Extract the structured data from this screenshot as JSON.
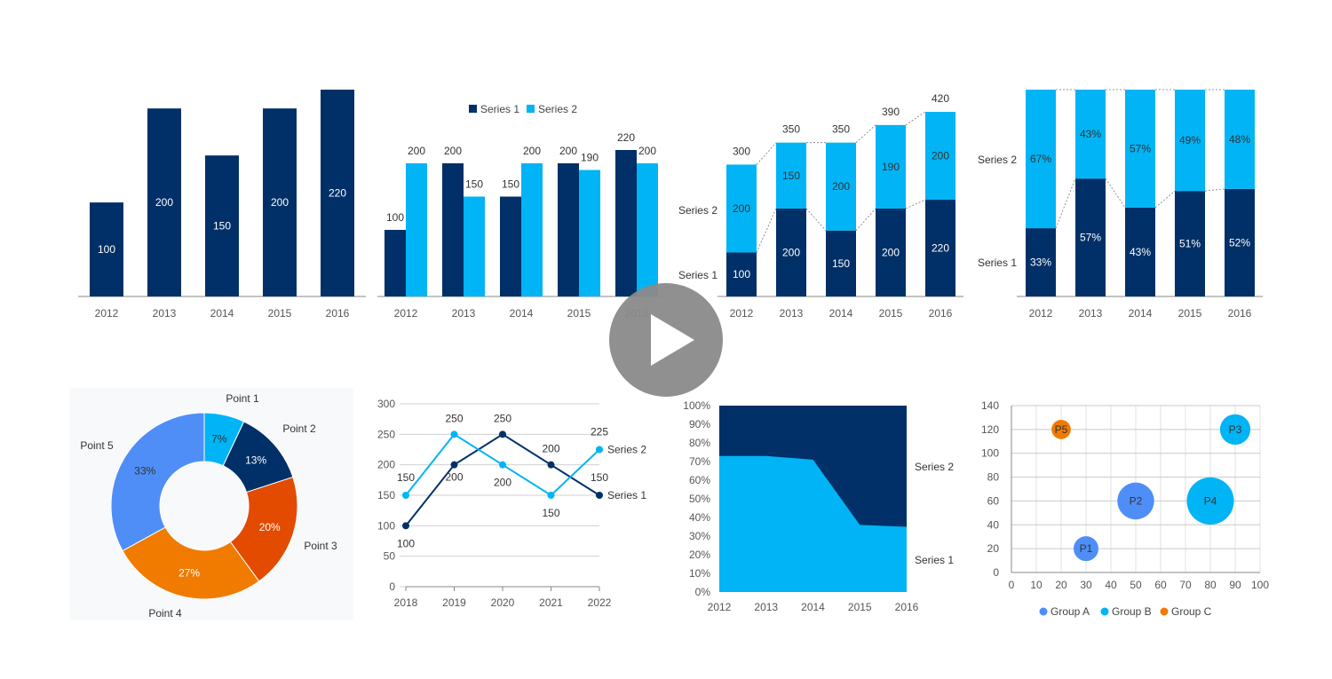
{
  "colors": {
    "dark": "#003067",
    "light": "#00b4f5",
    "blue": "#4f8ef7",
    "orange": "#f07b00",
    "darkorange": "#e24b00",
    "axis": "#888888",
    "grid": "#d0d0d0",
    "play": "#8a8a8a"
  },
  "play_icon": "play-icon",
  "chart_data": [
    {
      "type": "bar",
      "categories": [
        "2012",
        "2013",
        "2014",
        "2015",
        "2016"
      ],
      "values": [
        100,
        200,
        150,
        200,
        220
      ],
      "ylim": [
        0,
        220
      ]
    },
    {
      "type": "bar",
      "categories": [
        "2012",
        "2013",
        "2014",
        "2015",
        "2016"
      ],
      "series": [
        {
          "name": "Series 1",
          "values": [
            100,
            200,
            150,
            200,
            220
          ]
        },
        {
          "name": "Series 2",
          "values": [
            200,
            150,
            200,
            190,
            200
          ]
        }
      ],
      "legend": "top",
      "ylim": [
        0,
        220
      ]
    },
    {
      "type": "bar",
      "stacked": true,
      "categories": [
        "2012",
        "2013",
        "2014",
        "2015",
        "2016"
      ],
      "series": [
        {
          "name": "Series 1",
          "values": [
            100,
            200,
            150,
            200,
            220
          ]
        },
        {
          "name": "Series 2",
          "values": [
            200,
            150,
            200,
            190,
            200
          ]
        }
      ],
      "totals": [
        300,
        350,
        350,
        390,
        420
      ],
      "ylim": [
        0,
        420
      ]
    },
    {
      "type": "bar",
      "stacked": true,
      "percent": true,
      "categories": [
        "2012",
        "2013",
        "2014",
        "2015",
        "2016"
      ],
      "series": [
        {
          "name": "Series 1",
          "values": [
            33,
            57,
            43,
            51,
            52
          ],
          "labels": [
            "33%",
            "57%",
            "43%",
            "51%",
            "52%"
          ]
        },
        {
          "name": "Series 2",
          "values": [
            67,
            43,
            57,
            49,
            48
          ],
          "labels": [
            "67%",
            "43%",
            "57%",
            "49%",
            "48%"
          ]
        }
      ],
      "ylim": [
        0,
        100
      ]
    },
    {
      "type": "pie",
      "donut": true,
      "slices": [
        {
          "name": "Point 1",
          "value": 7,
          "label": "7%"
        },
        {
          "name": "Point 2",
          "value": 13,
          "label": "13%"
        },
        {
          "name": "Point 3",
          "value": 20,
          "label": "20%"
        },
        {
          "name": "Point 4",
          "value": 27,
          "label": "27%"
        },
        {
          "name": "Point 5",
          "value": 33,
          "label": "33%"
        }
      ]
    },
    {
      "type": "line",
      "x": [
        "2018",
        "2019",
        "2020",
        "2021",
        "2022"
      ],
      "series": [
        {
          "name": "Series 1",
          "values": [
            100,
            200,
            250,
            200,
            150
          ]
        },
        {
          "name": "Series 2",
          "values": [
            150,
            250,
            200,
            150,
            225
          ]
        }
      ],
      "yticks": [
        "0",
        "50",
        "100",
        "150",
        "200",
        "250",
        "300"
      ],
      "ylim": [
        0,
        300
      ],
      "grid": true
    },
    {
      "type": "area",
      "stacked": true,
      "percent": true,
      "x": [
        "2012",
        "2013",
        "2014",
        "2015",
        "2016"
      ],
      "series": [
        {
          "name": "Series 1",
          "values": [
            73,
            73,
            71,
            36,
            35
          ]
        },
        {
          "name": "Series 2",
          "values": [
            27,
            27,
            29,
            64,
            65
          ]
        }
      ],
      "yticks": [
        "0%",
        "10%",
        "20%",
        "30%",
        "40%",
        "50%",
        "60%",
        "70%",
        "80%",
        "90%",
        "100%"
      ],
      "ylim": [
        0,
        100
      ]
    },
    {
      "type": "scatter",
      "bubble": true,
      "groups": [
        "Group A",
        "Group B",
        "Group C"
      ],
      "points": [
        {
          "label": "P1",
          "x": 30,
          "y": 20,
          "size": 1,
          "group": 0
        },
        {
          "label": "P2",
          "x": 50,
          "y": 60,
          "size": 2.2,
          "group": 0
        },
        {
          "label": "P3",
          "x": 90,
          "y": 120,
          "size": 1.5,
          "group": 1
        },
        {
          "label": "P4",
          "x": 80,
          "y": 60,
          "size": 3.6,
          "group": 1
        },
        {
          "label": "P5",
          "x": 20,
          "y": 120,
          "size": 0.6,
          "group": 2
        }
      ],
      "xticks": [
        "0",
        "10",
        "20",
        "30",
        "40",
        "50",
        "60",
        "70",
        "80",
        "90",
        "100"
      ],
      "yticks": [
        "0",
        "20",
        "40",
        "60",
        "80",
        "100",
        "120",
        "140"
      ],
      "xlim": [
        0,
        100
      ],
      "ylim": [
        0,
        140
      ],
      "legend": "bottom",
      "grid": true
    }
  ]
}
